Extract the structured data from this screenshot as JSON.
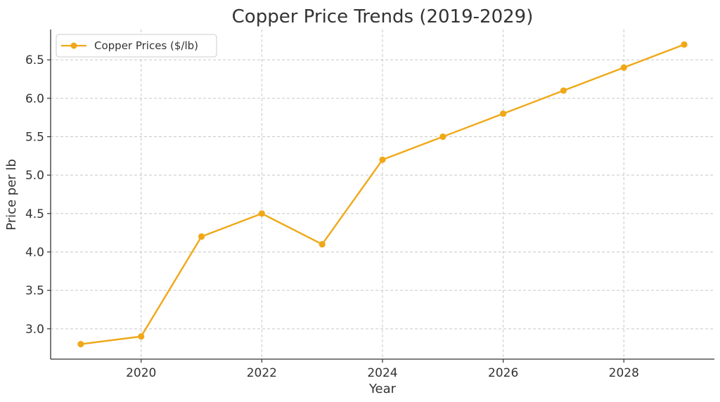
{
  "chart_data": {
    "type": "line",
    "title": "Copper Price Trends (2019-2029)",
    "xlabel": "Year",
    "ylabel": "Price per lb",
    "x": [
      2019,
      2020,
      2021,
      2022,
      2023,
      2024,
      2025,
      2026,
      2027,
      2028,
      2029
    ],
    "series": [
      {
        "name": "Copper Prices ($/lb)",
        "color": "#f0a818",
        "marker": "circle",
        "values": [
          2.8,
          2.9,
          4.2,
          4.5,
          4.1,
          5.2,
          5.5,
          5.8,
          6.1,
          6.4,
          6.7
        ]
      }
    ],
    "xticks": [
      2020,
      2022,
      2024,
      2026,
      2028
    ],
    "xtick_labels": [
      "2020",
      "2022",
      "2024",
      "2026",
      "2028"
    ],
    "yticks": [
      3.0,
      3.5,
      4.0,
      4.5,
      5.0,
      5.5,
      6.0,
      6.5
    ],
    "ytick_labels": [
      "3.0",
      "3.5",
      "4.0",
      "4.5",
      "5.0",
      "5.5",
      "6.0",
      "6.5"
    ],
    "xlim": [
      2018.5,
      2029.5
    ],
    "ylim": [
      2.605,
      6.895
    ],
    "grid": true,
    "legend_position": "top-left"
  }
}
